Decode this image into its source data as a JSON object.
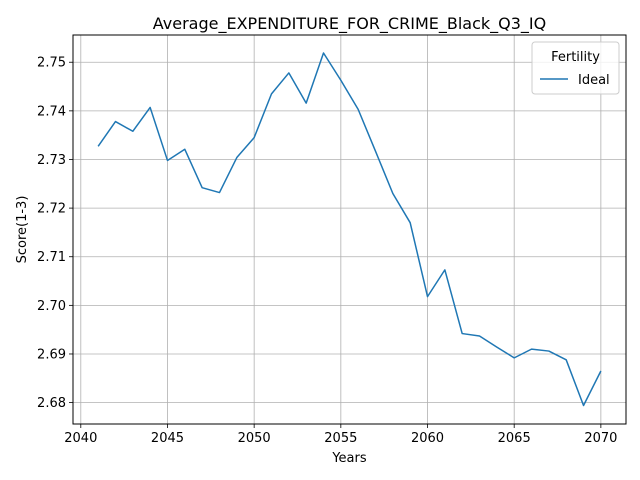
{
  "chart_data": {
    "type": "line",
    "title": "Average_EXPENDITURE_FOR_CRIME_Black_Q3_IQ",
    "xlabel": "Years",
    "ylabel": "Score(1-3)",
    "xlim": [
      2039.55,
      2071.45
    ],
    "ylim": [
      2.6756,
      2.7556
    ],
    "x_ticks": [
      2040,
      2045,
      2050,
      2055,
      2060,
      2065,
      2070
    ],
    "y_ticks": [
      2.68,
      2.69,
      2.7,
      2.71,
      2.72,
      2.73,
      2.74,
      2.75
    ],
    "grid": true,
    "legend": {
      "title": "Fertility",
      "placement": "top-right"
    },
    "series": [
      {
        "name": "Ideal",
        "color": "#1f77b4",
        "x": [
          2041,
          2042,
          2043,
          2044,
          2045,
          2046,
          2047,
          2048,
          2049,
          2050,
          2051,
          2052,
          2053,
          2054,
          2055,
          2056,
          2057,
          2058,
          2059,
          2060,
          2061,
          2062,
          2063,
          2064,
          2065,
          2066,
          2067,
          2068,
          2069,
          2070
        ],
        "y": [
          2.7327,
          2.7378,
          2.7358,
          2.7407,
          2.7298,
          2.7321,
          2.7242,
          2.7232,
          2.7304,
          2.7345,
          2.7435,
          2.7478,
          2.7416,
          2.7519,
          2.7463,
          2.7403,
          2.7317,
          2.723,
          2.717,
          2.7018,
          2.7073,
          2.6942,
          2.6937,
          2.6914,
          2.6892,
          2.691,
          2.6906,
          2.6888,
          2.6794,
          2.6865
        ]
      }
    ]
  }
}
